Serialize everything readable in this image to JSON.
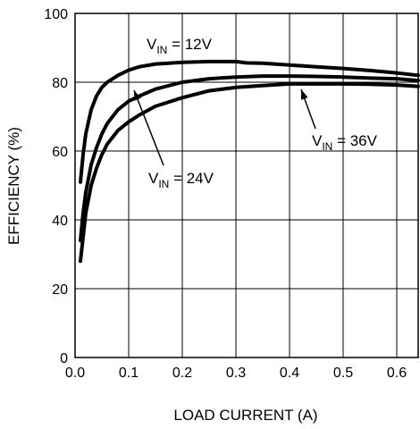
{
  "chart_data": {
    "type": "line",
    "title": "",
    "xlabel": "LOAD CURRENT (A)",
    "ylabel": "EFFICIENCY (%)",
    "xlim": [
      0,
      0.64
    ],
    "ylim": [
      0,
      100
    ],
    "grid": true,
    "x_ticks": [
      "0.0",
      "0.1",
      "0.2",
      "0.3",
      "0.4",
      "0.5",
      "0.6"
    ],
    "y_ticks": [
      "0",
      "20",
      "40",
      "60",
      "80",
      "100"
    ],
    "series": [
      {
        "label_prefix": "V",
        "label_sub": "IN",
        "label_suffix": " = 12V",
        "points": [
          [
            0.01,
            51
          ],
          [
            0.015,
            59
          ],
          [
            0.02,
            65
          ],
          [
            0.03,
            72
          ],
          [
            0.04,
            76
          ],
          [
            0.05,
            78.5
          ],
          [
            0.06,
            80
          ],
          [
            0.08,
            82
          ],
          [
            0.1,
            83.5
          ],
          [
            0.12,
            84.5
          ],
          [
            0.15,
            85.3
          ],
          [
            0.2,
            85.8
          ],
          [
            0.25,
            86
          ],
          [
            0.3,
            86
          ],
          [
            0.32,
            85.6
          ],
          [
            0.35,
            85.5
          ],
          [
            0.4,
            85
          ],
          [
            0.45,
            84.5
          ],
          [
            0.5,
            84
          ],
          [
            0.55,
            83.4
          ],
          [
            0.6,
            82.7
          ],
          [
            0.64,
            82
          ]
        ]
      },
      {
        "label_prefix": "V",
        "label_sub": "IN",
        "label_suffix": " = 24V",
        "points": [
          [
            0.01,
            34
          ],
          [
            0.015,
            42
          ],
          [
            0.02,
            48
          ],
          [
            0.03,
            56
          ],
          [
            0.04,
            61
          ],
          [
            0.05,
            65
          ],
          [
            0.06,
            68
          ],
          [
            0.08,
            72
          ],
          [
            0.1,
            74.5
          ],
          [
            0.12,
            76
          ],
          [
            0.15,
            78
          ],
          [
            0.2,
            80
          ],
          [
            0.25,
            81
          ],
          [
            0.3,
            81.5
          ],
          [
            0.35,
            81.8
          ],
          [
            0.4,
            81.8
          ],
          [
            0.45,
            81.7
          ],
          [
            0.5,
            81.5
          ],
          [
            0.55,
            81.2
          ],
          [
            0.6,
            81
          ],
          [
            0.64,
            80.5
          ]
        ]
      },
      {
        "label_prefix": "V",
        "label_sub": "IN",
        "label_suffix": " = 36V",
        "points": [
          [
            0.01,
            28
          ],
          [
            0.015,
            35
          ],
          [
            0.02,
            42
          ],
          [
            0.03,
            50
          ],
          [
            0.04,
            55
          ],
          [
            0.05,
            59
          ],
          [
            0.06,
            62
          ],
          [
            0.08,
            66
          ],
          [
            0.1,
            68.5
          ],
          [
            0.12,
            70.5
          ],
          [
            0.15,
            73
          ],
          [
            0.2,
            75.5
          ],
          [
            0.25,
            77.5
          ],
          [
            0.3,
            78.5
          ],
          [
            0.35,
            79
          ],
          [
            0.4,
            79.5
          ],
          [
            0.45,
            79.5
          ],
          [
            0.5,
            79.5
          ],
          [
            0.55,
            79.4
          ],
          [
            0.6,
            79.2
          ],
          [
            0.64,
            78.8
          ]
        ]
      }
    ]
  }
}
